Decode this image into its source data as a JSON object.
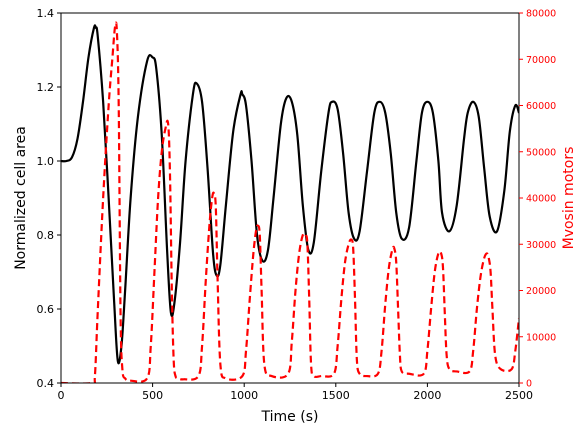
{
  "chart_data": {
    "type": "line",
    "xlabel": "Time (s)",
    "ylabel_left": "Normalized cell area",
    "ylabel_right": "Mvosin motors",
    "xlim": [
      0,
      2500
    ],
    "ylim_left": [
      0.4,
      1.4
    ],
    "ylim_right": [
      0,
      80000
    ],
    "x_ticks": [
      "0",
      "500",
      "1000",
      "1500",
      "2000",
      "2500"
    ],
    "y_ticks_left": [
      "0.4",
      "0.6",
      "0.8",
      "1.0",
      "1.2",
      "1.4"
    ],
    "y_ticks_right": [
      "0",
      "10000",
      "20000",
      "30000",
      "40000",
      "50000",
      "60000",
      "70000",
      "80000"
    ],
    "grid": false,
    "series": [
      {
        "axis": "left",
        "style": "solid",
        "color": "#000000",
        "x": [
          0,
          30,
          60,
          90,
          120,
          150,
          180,
          190,
          200,
          230,
          260,
          290,
          310,
          330,
          350,
          380,
          420,
          470,
          500,
          520,
          550,
          580,
          600,
          620,
          650,
          680,
          720,
          740,
          770,
          800,
          830,
          850,
          870,
          900,
          940,
          980,
          990,
          1010,
          1040,
          1070,
          1100,
          1130,
          1160,
          1200,
          1230,
          1260,
          1290,
          1320,
          1350,
          1380,
          1420,
          1460,
          1480,
          1510,
          1540,
          1570,
          1600,
          1630,
          1670,
          1710,
          1740,
          1770,
          1800,
          1830,
          1860,
          1900,
          1940,
          1970,
          2000,
          2030,
          2060,
          2080,
          2120,
          2160,
          2200,
          2220,
          2250,
          2280,
          2310,
          2340,
          2380,
          2420,
          2450,
          2480,
          2500
        ],
        "y": [
          1.0,
          1.0,
          1.01,
          1.06,
          1.16,
          1.28,
          1.36,
          1.36,
          1.34,
          1.16,
          0.9,
          0.62,
          0.46,
          0.5,
          0.65,
          0.9,
          1.12,
          1.27,
          1.28,
          1.25,
          1.07,
          0.75,
          0.59,
          0.62,
          0.78,
          1.0,
          1.18,
          1.21,
          1.16,
          0.98,
          0.75,
          0.69,
          0.72,
          0.88,
          1.08,
          1.18,
          1.18,
          1.15,
          1.0,
          0.8,
          0.73,
          0.76,
          0.9,
          1.1,
          1.17,
          1.16,
          1.07,
          0.88,
          0.76,
          0.78,
          0.97,
          1.13,
          1.16,
          1.14,
          1.02,
          0.86,
          0.79,
          0.81,
          0.97,
          1.13,
          1.16,
          1.13,
          1.02,
          0.86,
          0.79,
          0.82,
          1.0,
          1.13,
          1.16,
          1.13,
          1.0,
          0.86,
          0.81,
          0.88,
          1.06,
          1.13,
          1.16,
          1.12,
          0.98,
          0.85,
          0.81,
          0.92,
          1.08,
          1.15,
          1.13
        ]
      },
      {
        "axis": "right",
        "style": "dashed",
        "color": "#ff0000",
        "x": [
          0,
          170,
          185,
          200,
          230,
          260,
          280,
          295,
          305,
          315,
          325,
          335,
          350,
          380,
          470,
          490,
          510,
          530,
          550,
          570,
          585,
          595,
          605,
          615,
          625,
          640,
          670,
          750,
          770,
          790,
          810,
          825,
          835,
          845,
          855,
          870,
          900,
          990,
          1010,
          1030,
          1050,
          1065,
          1075,
          1085,
          1095,
          1110,
          1150,
          1240,
          1260,
          1280,
          1300,
          1320,
          1335,
          1345,
          1355,
          1365,
          1380,
          1420,
          1490,
          1510,
          1530,
          1550,
          1570,
          1585,
          1595,
          1605,
          1615,
          1630,
          1670,
          1730,
          1750,
          1770,
          1790,
          1810,
          1820,
          1830,
          1840,
          1850,
          1860,
          1900,
          1980,
          2000,
          2020,
          2040,
          2060,
          2075,
          2085,
          2095,
          2105,
          2120,
          2160,
          2230,
          2250,
          2270,
          2290,
          2310,
          2325,
          2335,
          2345,
          2355,
          2370,
          2400,
          2460,
          2480,
          2500
        ],
        "y": [
          0,
          0,
          1500,
          15000,
          40000,
          60000,
          70000,
          77000,
          76000,
          60000,
          15000,
          3000,
          1000,
          500,
          1000,
          8000,
          24000,
          40000,
          50000,
          55000,
          56000,
          45000,
          20000,
          5000,
          1500,
          1000,
          800,
          1500,
          8000,
          22000,
          34000,
          40000,
          41000,
          38000,
          22000,
          4000,
          1000,
          1500,
          7000,
          18000,
          28000,
          33000,
          34000,
          32000,
          20000,
          4000,
          1500,
          2000,
          9000,
          20000,
          28000,
          32000,
          32000,
          30000,
          18000,
          4000,
          1500,
          1500,
          2000,
          8000,
          18000,
          26000,
          30000,
          31000,
          29000,
          18000,
          5000,
          2000,
          1500,
          2000,
          7000,
          17000,
          25000,
          29000,
          29000,
          26000,
          16000,
          6000,
          2500,
          2000,
          2000,
          7000,
          16000,
          24000,
          28000,
          28000,
          25000,
          15000,
          6000,
          3000,
          2500,
          2500,
          7000,
          16000,
          23000,
          27000,
          28000,
          27000,
          24000,
          16000,
          6000,
          3000,
          3000,
          7000,
          14000
        ]
      }
    ]
  }
}
